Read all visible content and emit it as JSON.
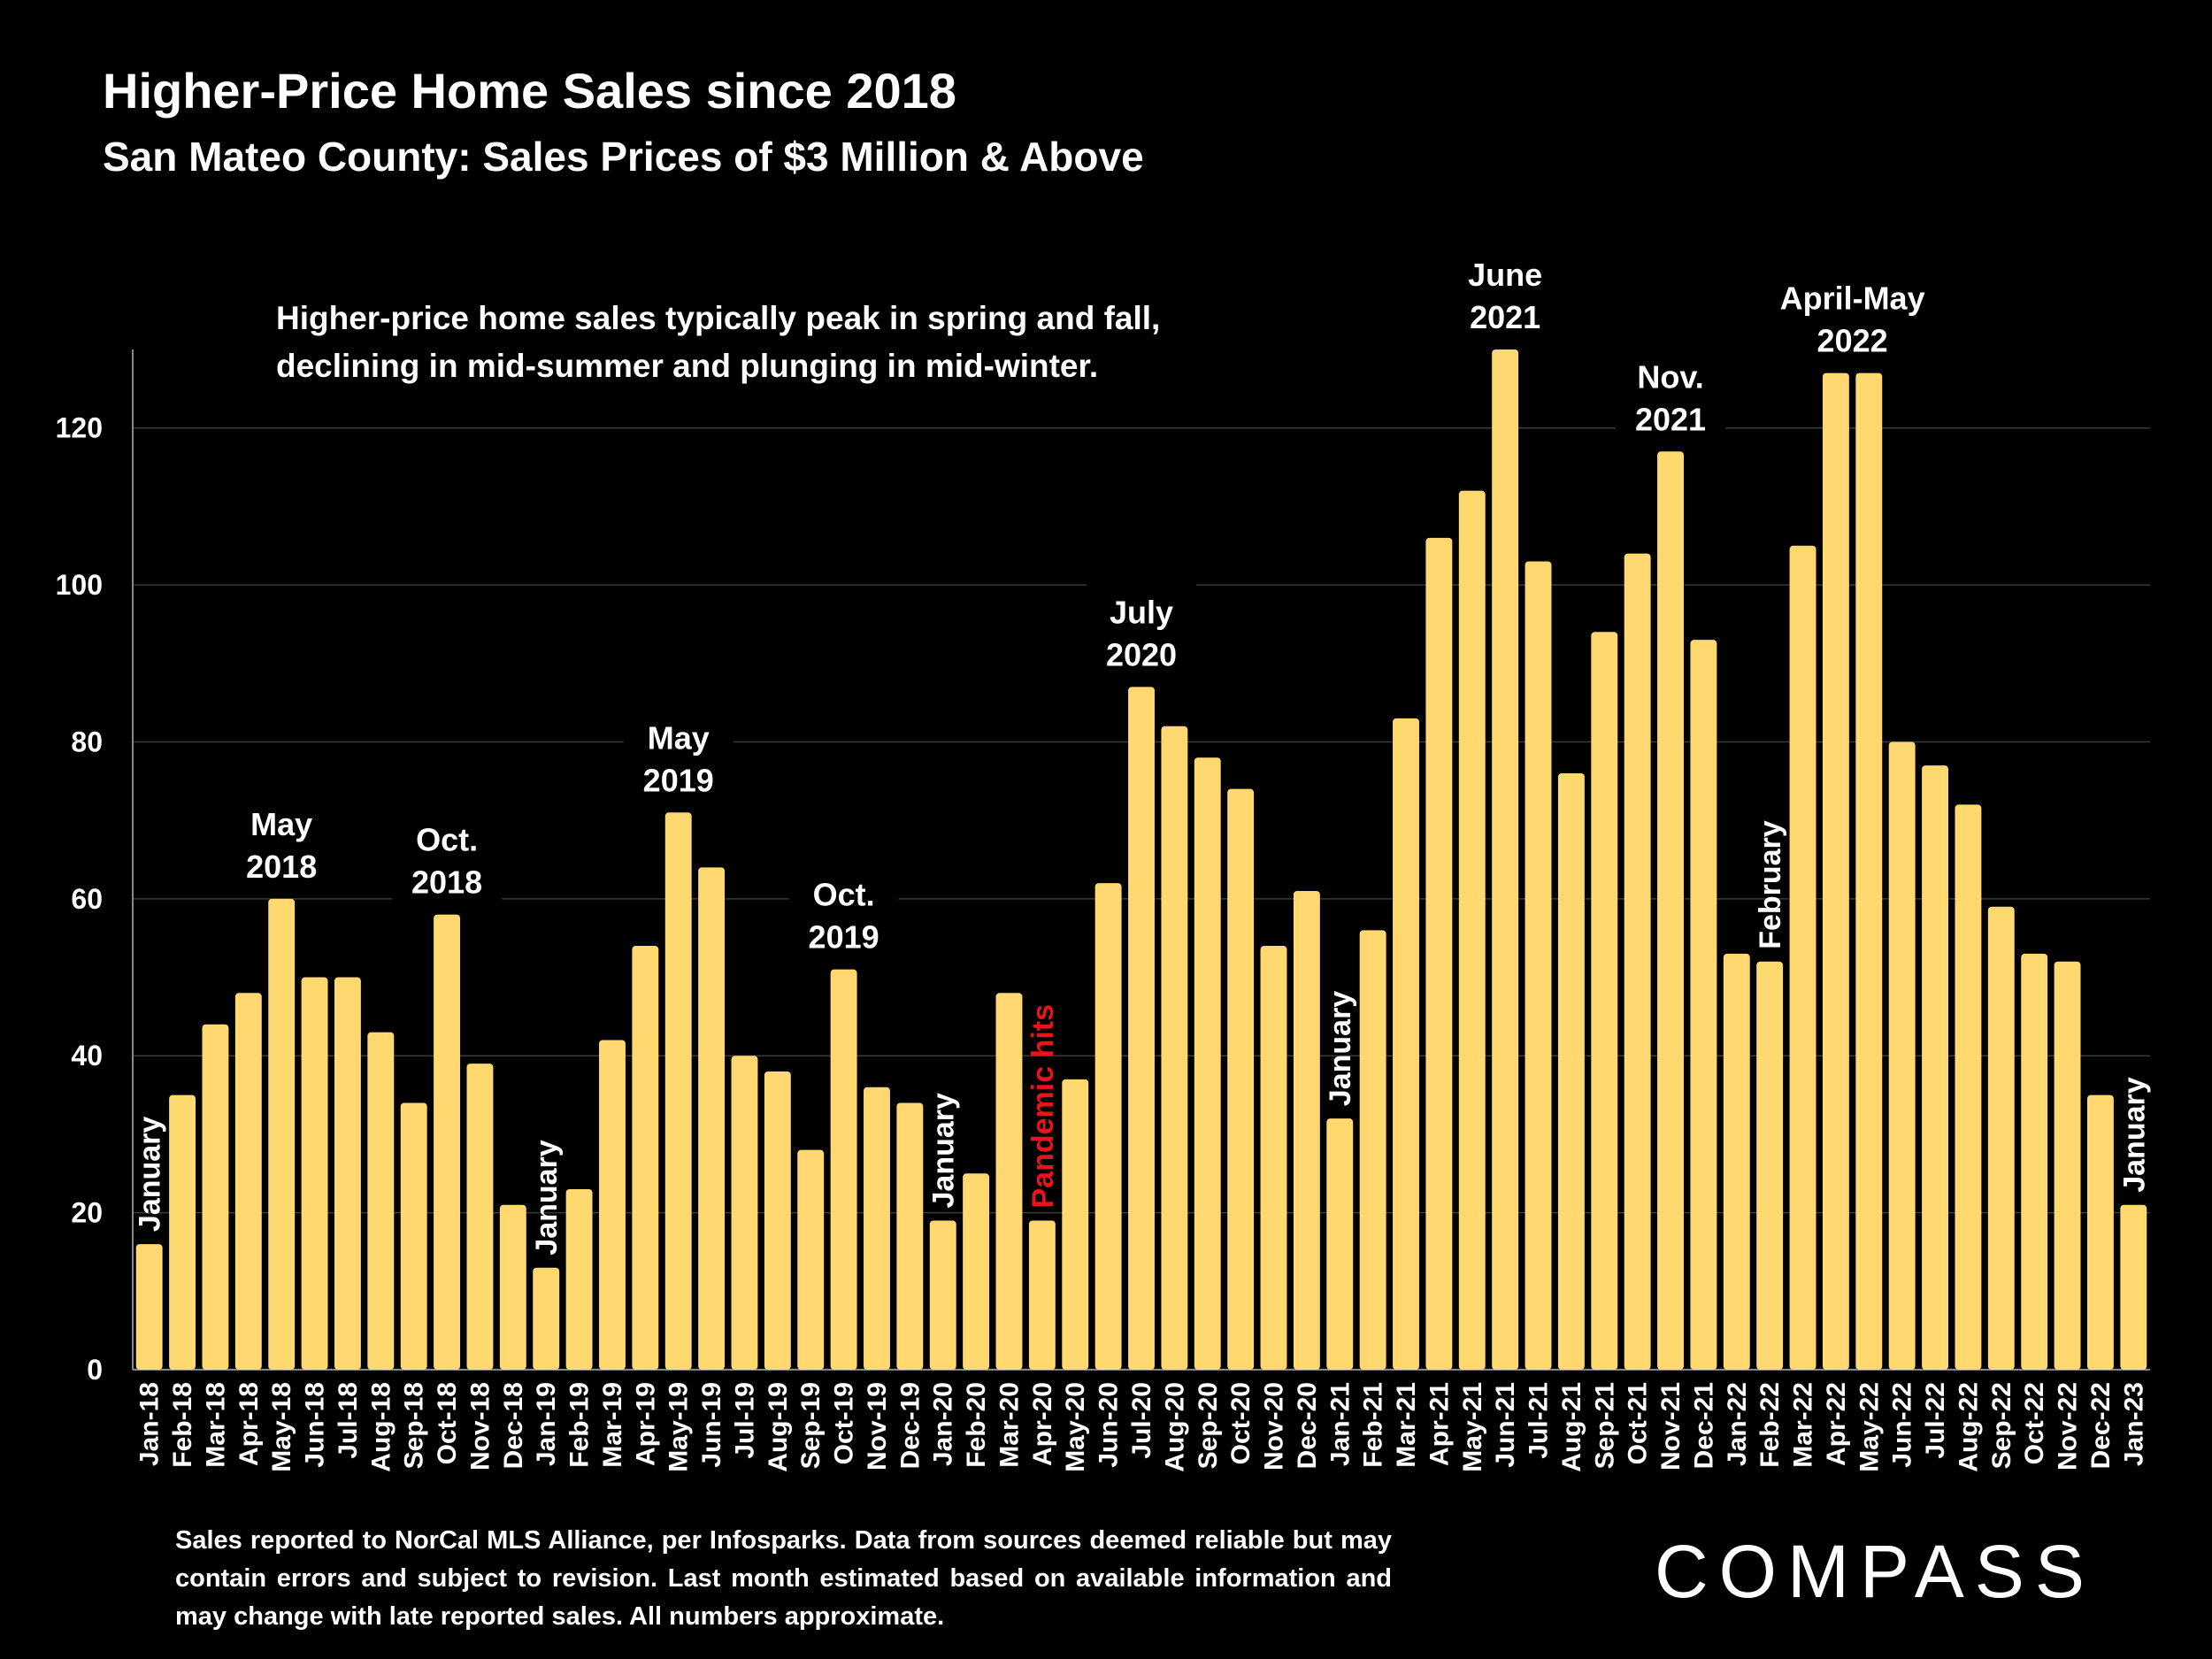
{
  "header": {
    "title": "Higher-Price Home Sales since 2018",
    "subtitle": "San Mateo County: Sales Prices of $3 Million & Above"
  },
  "footnote": "Sales reported to NorCal MLS Alliance, per Infosparks. Data from sources deemed reliable but may contain errors and subject to revision. Last month estimated based on available information and may change with late reported sales. All numbers approximate.",
  "logo": "COMPASS",
  "colors": {
    "bar": "#FFD86F",
    "background": "#000000",
    "highlight_text": "#E8141B",
    "grid": "#3a3a3a"
  },
  "chart_data": {
    "type": "bar",
    "categories": [
      "Jan-18",
      "Feb-18",
      "Mar-18",
      "Apr-18",
      "May-18",
      "Jun-18",
      "Jul-18",
      "Aug-18",
      "Sep-18",
      "Oct-18",
      "Nov-18",
      "Dec-18",
      "Jan-19",
      "Feb-19",
      "Mar-19",
      "Apr-19",
      "May-19",
      "Jun-19",
      "Jul-19",
      "Aug-19",
      "Sep-19",
      "Oct-19",
      "Nov-19",
      "Dec-19",
      "Jan-20",
      "Feb-20",
      "Mar-20",
      "Apr-20",
      "May-20",
      "Jun-20",
      "Jul-20",
      "Aug-20",
      "Sep-20",
      "Oct-20",
      "Nov-20",
      "Dec-20",
      "Jan-21",
      "Feb-21",
      "Mar-21",
      "Apr-21",
      "May-21",
      "Jun-21",
      "Jul-21",
      "Aug-21",
      "Sep-21",
      "Oct-21",
      "Nov-21",
      "Dec-21",
      "Jan-22",
      "Feb-22",
      "Mar-22",
      "Apr-22",
      "May-22",
      "Jun-22",
      "Jul-22",
      "Aug-22",
      "Sep-22",
      "Oct-22",
      "Nov-22",
      "Dec-22",
      "Jan-23"
    ],
    "values": [
      16,
      35,
      44,
      48,
      60,
      50,
      50,
      43,
      34,
      58,
      39,
      21,
      13,
      23,
      42,
      54,
      71,
      64,
      40,
      38,
      28,
      51,
      36,
      34,
      19,
      25,
      48,
      19,
      37,
      62,
      87,
      82,
      78,
      74,
      54,
      61,
      32,
      56,
      83,
      106,
      112,
      130,
      103,
      76,
      94,
      104,
      117,
      93,
      53,
      52,
      105,
      127,
      127,
      80,
      77,
      72,
      59,
      53,
      52,
      35,
      21
    ],
    "ylim": [
      0,
      130
    ],
    "yticks": [
      0,
      20,
      40,
      60,
      80,
      100,
      120
    ],
    "grid": true,
    "legend": "none",
    "annotation_note": {
      "lines": [
        "Higher-price home sales typically peak in spring and fall,",
        "declining in mid-summer and plunging in mid-winter."
      ]
    },
    "annotations": [
      {
        "index": 4,
        "lines": [
          "May",
          "2018"
        ]
      },
      {
        "index": 9,
        "lines": [
          "Oct.",
          "2018"
        ]
      },
      {
        "index": 16,
        "lines": [
          "May",
          "2019"
        ]
      },
      {
        "index": 21,
        "lines": [
          "Oct.",
          "2019"
        ]
      },
      {
        "index": 30,
        "lines": [
          "July",
          "2020"
        ]
      },
      {
        "index": 41,
        "lines": [
          "June",
          "2021"
        ]
      },
      {
        "index": 46,
        "lines": [
          "Nov.",
          "2021"
        ]
      },
      {
        "index": 51.5,
        "lines": [
          "April-May",
          "2022"
        ]
      }
    ],
    "vertical_labels": [
      {
        "index": 0,
        "text": "January"
      },
      {
        "index": 12,
        "text": "January"
      },
      {
        "index": 24,
        "text": "January"
      },
      {
        "index": 27,
        "text": "Pandemic hits",
        "highlight": true
      },
      {
        "index": 36,
        "text": "January"
      },
      {
        "index": 49,
        "text": "February"
      },
      {
        "index": 60,
        "text": "January"
      }
    ]
  }
}
